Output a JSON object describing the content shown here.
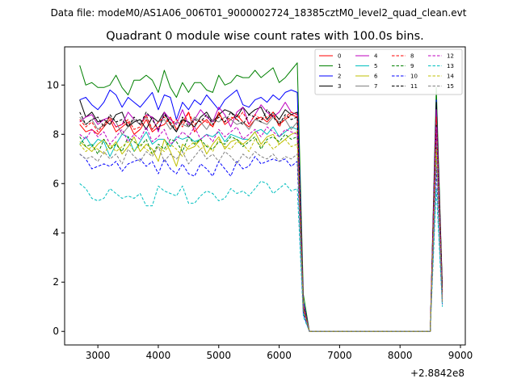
{
  "figure": {
    "suptitle": "Data file: modeM0/AS1A06_006T01_9000002724_18385cztM0_level2_quad_clean.evt",
    "title": "Quadrant 0 module wise count rates with 100.0s bins.",
    "x_offset_label": "+2.8842e8"
  },
  "chart_data": {
    "type": "line",
    "title": "Quadrant 0 module wise count rates with 100.0s bins.",
    "xlabel": "",
    "ylabel": "",
    "x_offset": 288420000,
    "xlim": [
      2450,
      9080
    ],
    "ylim": [
      -0.55,
      11.55
    ],
    "xticks": [
      3000,
      4000,
      5000,
      6000,
      7000,
      8000,
      9000
    ],
    "yticks": [
      0,
      2,
      4,
      6,
      8,
      10
    ],
    "grid": false,
    "legend_position": "top-right",
    "legend_columns": 4,
    "x_start": 2700,
    "x_step": 100,
    "series": [
      {
        "name": "0",
        "color": "#ff0000",
        "dash": false,
        "values": [
          8.4,
          8.1,
          8.2,
          8.0,
          8.3,
          8.6,
          8.1,
          8.3,
          8.5,
          8.0,
          8.2,
          8.6,
          8.1,
          8.3,
          8.4,
          8.7,
          8.2,
          8.5,
          8.9,
          8.1,
          8.4,
          8.6,
          8.3,
          8.9,
          8.4,
          8.6,
          8.8,
          8.5,
          8.3,
          8.6,
          8.7,
          8.5,
          8.8,
          8.4,
          8.6,
          8.8,
          8.7,
          1.0,
          0,
          0,
          0,
          0,
          0,
          0,
          0,
          0,
          0,
          0,
          0,
          0,
          0,
          0,
          0,
          0,
          0,
          0,
          0,
          0,
          0,
          9.0,
          1.6
        ]
      },
      {
        "name": "1",
        "color": "#008000",
        "dash": false,
        "values": [
          10.8,
          10.0,
          10.1,
          9.9,
          9.9,
          10.0,
          10.4,
          9.9,
          9.6,
          10.2,
          10.2,
          10.4,
          10.2,
          9.7,
          10.6,
          9.9,
          9.5,
          10.1,
          9.7,
          10.1,
          10.1,
          9.8,
          9.7,
          10.4,
          10.0,
          10.1,
          10.4,
          10.3,
          10.3,
          10.6,
          10.3,
          10.5,
          10.7,
          10.1,
          10.3,
          10.6,
          10.9,
          1.5,
          0,
          0,
          0,
          0,
          0,
          0,
          0,
          0,
          0,
          0,
          0,
          0,
          0,
          0,
          0,
          0,
          0,
          0,
          0,
          0,
          0,
          9.9,
          1.7
        ]
      },
      {
        "name": "2",
        "color": "#0000ff",
        "dash": false,
        "values": [
          9.4,
          9.5,
          9.2,
          9.0,
          9.3,
          9.8,
          9.6,
          9.1,
          9.5,
          9.3,
          9.1,
          9.4,
          9.7,
          9.0,
          9.6,
          9.5,
          8.6,
          9.3,
          9.0,
          9.4,
          9.2,
          9.6,
          9.3,
          9.0,
          9.4,
          9.6,
          9.8,
          9.2,
          9.1,
          9.4,
          9.5,
          9.3,
          9.6,
          9.4,
          9.7,
          9.8,
          9.7,
          1.2,
          0,
          0,
          0,
          0,
          0,
          0,
          0,
          0,
          0,
          0,
          0,
          0,
          0,
          0,
          0,
          0,
          0,
          0,
          0,
          0,
          0,
          9.4,
          1.5
        ]
      },
      {
        "name": "3",
        "color": "#000000",
        "dash": false,
        "values": [
          9.4,
          8.7,
          8.9,
          8.5,
          8.6,
          8.4,
          8.8,
          8.9,
          8.3,
          8.5,
          8.6,
          8.2,
          8.7,
          8.5,
          8.9,
          8.4,
          8.1,
          8.6,
          8.5,
          8.3,
          8.7,
          8.9,
          8.5,
          8.8,
          9.0,
          8.9,
          8.7,
          9.1,
          8.8,
          9.0,
          9.1,
          8.6,
          8.9,
          8.6,
          9.0,
          8.8,
          8.9,
          1.1,
          0,
          0,
          0,
          0,
          0,
          0,
          0,
          0,
          0,
          0,
          0,
          0,
          0,
          0,
          0,
          0,
          0,
          0,
          0,
          0,
          0,
          9.3,
          1.8
        ]
      },
      {
        "name": "4",
        "color": "#bf00bf",
        "dash": false,
        "values": [
          8.5,
          8.7,
          8.8,
          8.4,
          8.6,
          8.7,
          8.3,
          8.4,
          8.9,
          8.6,
          8.4,
          8.8,
          8.7,
          8.1,
          8.9,
          8.6,
          8.4,
          9.0,
          8.4,
          8.6,
          9.0,
          8.7,
          8.5,
          9.1,
          8.8,
          8.3,
          8.9,
          9.1,
          8.4,
          8.8,
          9.2,
          8.9,
          8.7,
          8.9,
          9.3,
          8.9,
          8.8,
          1.1,
          0,
          0,
          0,
          0,
          0,
          0,
          0,
          0,
          0,
          0,
          0,
          0,
          0,
          0,
          0,
          0,
          0,
          0,
          0,
          0,
          0,
          9.0,
          1.4
        ]
      },
      {
        "name": "5",
        "color": "#00bfbf",
        "dash": false,
        "values": [
          7.6,
          7.9,
          7.5,
          7.8,
          7.7,
          7.1,
          7.6,
          8.0,
          7.9,
          7.3,
          7.7,
          8.1,
          7.6,
          7.8,
          7.8,
          7.5,
          7.9,
          7.8,
          7.9,
          7.7,
          7.8,
          8.0,
          7.9,
          8.1,
          7.7,
          8.0,
          7.9,
          7.8,
          7.8,
          8.1,
          8.2,
          8.0,
          8.3,
          7.9,
          8.1,
          8.3,
          8.2,
          0.9,
          0,
          0,
          0,
          0,
          0,
          0,
          0,
          0,
          0,
          0,
          0,
          0,
          0,
          0,
          0,
          0,
          0,
          0,
          0,
          0,
          0,
          7.8,
          1.2
        ]
      },
      {
        "name": "6",
        "color": "#bfbf00",
        "dash": false,
        "values": [
          7.7,
          7.5,
          7.3,
          7.6,
          7.8,
          7.4,
          7.7,
          7.2,
          7.5,
          7.9,
          7.3,
          7.6,
          7.4,
          6.9,
          7.8,
          7.3,
          6.7,
          7.6,
          7.4,
          7.5,
          7.8,
          7.2,
          7.6,
          7.9,
          7.4,
          7.7,
          7.8,
          7.6,
          7.8,
          8.1,
          7.6,
          7.9,
          8.0,
          7.6,
          7.8,
          8.0,
          8.1,
          0.9,
          0,
          0,
          0,
          0,
          0,
          0,
          0,
          0,
          0,
          0,
          0,
          0,
          0,
          0,
          0,
          0,
          0,
          0,
          0,
          0,
          0,
          8.2,
          1.3
        ]
      },
      {
        "name": "7",
        "color": "#808080",
        "dash": false,
        "values": [
          8.7,
          8.4,
          8.6,
          8.2,
          8.4,
          8.7,
          8.5,
          8.0,
          8.3,
          8.6,
          8.4,
          8.7,
          8.2,
          8.5,
          8.6,
          8.2,
          8.5,
          8.4,
          8.3,
          8.7,
          8.5,
          8.2,
          8.6,
          8.5,
          8.7,
          8.6,
          8.4,
          8.5,
          8.2,
          8.6,
          8.5,
          8.4,
          8.7,
          8.5,
          8.6,
          8.2,
          8.5,
          1.0,
          0,
          0,
          0,
          0,
          0,
          0,
          0,
          0,
          0,
          0,
          0,
          0,
          0,
          0,
          0,
          0,
          0,
          0,
          0,
          0,
          0,
          8.6,
          1.4
        ]
      },
      {
        "name": "8",
        "color": "#ff0000",
        "dash": true,
        "values": [
          8.6,
          8.3,
          8.5,
          8.1,
          8.4,
          8.7,
          8.3,
          8.4,
          8.6,
          8.2,
          8.3,
          8.8,
          8.2,
          8.5,
          8.7,
          8.4,
          8.6,
          8.3,
          8.9,
          8.4,
          8.6,
          8.5,
          8.3,
          8.8,
          8.5,
          8.7,
          8.6,
          8.9,
          8.4,
          8.8,
          8.6,
          8.7,
          8.9,
          8.3,
          8.7,
          8.9,
          8.8,
          1.0,
          0,
          0,
          0,
          0,
          0,
          0,
          0,
          0,
          0,
          0,
          0,
          0,
          0,
          0,
          0,
          0,
          0,
          0,
          0,
          0,
          0,
          8.7,
          1.5
        ]
      },
      {
        "name": "9",
        "color": "#008000",
        "dash": true,
        "values": [
          7.9,
          7.5,
          7.6,
          7.2,
          7.8,
          7.4,
          7.6,
          7.3,
          7.9,
          7.7,
          7.5,
          7.8,
          7.2,
          7.6,
          7.4,
          7.8,
          7.7,
          7.3,
          7.9,
          7.6,
          7.8,
          7.5,
          7.4,
          7.7,
          7.6,
          7.9,
          7.8,
          7.5,
          7.7,
          7.9,
          7.4,
          7.8,
          7.9,
          7.7,
          8.0,
          7.8,
          7.9,
          0.8,
          0,
          0,
          0,
          0,
          0,
          0,
          0,
          0,
          0,
          0,
          0,
          0,
          0,
          0,
          0,
          0,
          0,
          0,
          0,
          0,
          0,
          7.5,
          1.2
        ]
      },
      {
        "name": "10",
        "color": "#0000ff",
        "dash": true,
        "values": [
          7.2,
          7.0,
          6.6,
          6.7,
          6.8,
          6.7,
          6.9,
          6.5,
          6.8,
          6.9,
          7.0,
          6.7,
          6.9,
          6.4,
          7.0,
          6.6,
          6.4,
          6.8,
          6.4,
          6.3,
          6.8,
          6.6,
          6.3,
          6.9,
          6.6,
          6.3,
          6.9,
          6.6,
          6.7,
          7.1,
          6.8,
          6.9,
          7.0,
          6.9,
          7.0,
          6.7,
          6.9,
          0.7,
          0,
          0,
          0,
          0,
          0,
          0,
          0,
          0,
          0,
          0,
          0,
          0,
          0,
          0,
          0,
          0,
          0,
          0,
          0,
          0,
          0,
          6.6,
          1.1
        ]
      },
      {
        "name": "11",
        "color": "#000000",
        "dash": true,
        "values": [
          8.9,
          8.4,
          8.6,
          8.7,
          8.3,
          8.8,
          8.5,
          8.6,
          8.3,
          8.7,
          8.4,
          8.9,
          8.6,
          8.2,
          8.8,
          8.5,
          8.1,
          8.7,
          8.3,
          8.6,
          8.5,
          8.8,
          8.4,
          8.7,
          8.5,
          8.9,
          8.6,
          8.4,
          8.8,
          8.7,
          8.5,
          9.0,
          8.7,
          8.4,
          8.8,
          8.6,
          8.7,
          1.0,
          0,
          0,
          0,
          0,
          0,
          0,
          0,
          0,
          0,
          0,
          0,
          0,
          0,
          0,
          0,
          0,
          0,
          0,
          0,
          0,
          0,
          8.4,
          1.6
        ]
      },
      {
        "name": "12",
        "color": "#bf00bf",
        "dash": true,
        "values": [
          8.0,
          7.8,
          8.2,
          7.9,
          8.1,
          7.6,
          7.9,
          8.2,
          7.7,
          8.0,
          7.8,
          8.3,
          7.7,
          7.9,
          8.2,
          7.6,
          7.8,
          8.1,
          7.9,
          8.3,
          7.8,
          8.0,
          7.7,
          8.2,
          7.9,
          8.1,
          8.3,
          7.8,
          8.0,
          8.2,
          7.9,
          8.3,
          8.1,
          7.9,
          8.2,
          8.1,
          8.0,
          0.9,
          0,
          0,
          0,
          0,
          0,
          0,
          0,
          0,
          0,
          0,
          0,
          0,
          0,
          0,
          0,
          0,
          0,
          0,
          0,
          0,
          0,
          8.3,
          1.3
        ]
      },
      {
        "name": "13",
        "color": "#00bfbf",
        "dash": true,
        "values": [
          6.0,
          5.8,
          5.4,
          5.3,
          5.4,
          5.8,
          5.6,
          5.4,
          5.5,
          5.4,
          5.6,
          5.1,
          5.1,
          5.9,
          5.7,
          5.6,
          5.5,
          5.9,
          5.2,
          5.2,
          5.5,
          5.7,
          5.6,
          5.3,
          5.4,
          5.8,
          5.6,
          5.7,
          5.5,
          5.8,
          6.1,
          6.0,
          5.6,
          5.8,
          6.0,
          5.7,
          5.8,
          0.6,
          0,
          0,
          0,
          0,
          0,
          0,
          0,
          0,
          0,
          0,
          0,
          0,
          0,
          0,
          0,
          0,
          0,
          0,
          0,
          0,
          0,
          5.8,
          1.0
        ]
      },
      {
        "name": "14",
        "color": "#bfbf00",
        "dash": true,
        "values": [
          7.6,
          7.3,
          7.5,
          7.4,
          7.2,
          7.6,
          7.3,
          7.5,
          7.7,
          7.3,
          7.6,
          7.4,
          7.2,
          7.5,
          7.3,
          7.6,
          7.4,
          7.1,
          7.5,
          7.7,
          7.4,
          7.6,
          7.3,
          7.8,
          7.5,
          7.4,
          7.7,
          7.6,
          7.3,
          7.8,
          7.5,
          7.7,
          7.4,
          7.6,
          7.8,
          7.5,
          7.6,
          0.9,
          0,
          0,
          0,
          0,
          0,
          0,
          0,
          0,
          0,
          0,
          0,
          0,
          0,
          0,
          0,
          0,
          0,
          0,
          0,
          0,
          0,
          7.4,
          1.2
        ]
      },
      {
        "name": "15",
        "color": "#808080",
        "dash": true,
        "values": [
          7.2,
          7.0,
          7.1,
          6.9,
          7.3,
          7.0,
          7.2,
          6.8,
          7.4,
          7.1,
          6.9,
          7.3,
          7.1,
          7.5,
          6.9,
          7.2,
          7.0,
          7.3,
          6.8,
          7.1,
          7.4,
          7.0,
          7.2,
          6.9,
          7.3,
          7.1,
          6.8,
          7.2,
          7.0,
          7.3,
          7.1,
          7.0,
          7.2,
          6.9,
          7.1,
          7.0,
          7.2,
          0.8,
          0,
          0,
          0,
          0,
          0,
          0,
          0,
          0,
          0,
          0,
          0,
          0,
          0,
          0,
          0,
          0,
          0,
          0,
          0,
          0,
          0,
          7.0,
          1.1
        ]
      }
    ]
  }
}
